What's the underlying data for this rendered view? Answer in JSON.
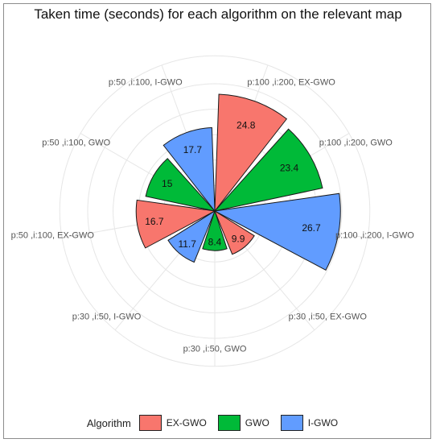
{
  "title": "Taken time (seconds) for each algorithm on the relevant map",
  "legend": {
    "title": "Algorithm",
    "items": [
      {
        "label": "EX-GWO",
        "color": "#F8766D"
      },
      {
        "label": "GWO",
        "color": "#00BA38"
      },
      {
        "label": "I-GWO",
        "color": "#619CFF"
      }
    ]
  },
  "chart_data": {
    "type": "bar",
    "polar": true,
    "title": "Taken time (seconds) for each algorithm on the relevant map",
    "categories": [
      "p:100 ,i:200, EX-GWO",
      "p:100 ,i:200, GWO",
      "p:100 ,i:200, I-GWO",
      "p:30 ,i:50, EX-GWO",
      "p:30 ,i:50, GWO",
      "p:30 ,i:50, I-GWO",
      "p:50 ,i:100, EX-GWO",
      "p:50 ,i:100, GWO",
      "p:50 ,i:100, I-GWO"
    ],
    "values": [
      24.8,
      23.4,
      26.7,
      9.9,
      8.4,
      11.7,
      16.7,
      15,
      17.7
    ],
    "algorithm": [
      "EX-GWO",
      "GWO",
      "I-GWO",
      "EX-GWO",
      "GWO",
      "I-GWO",
      "EX-GWO",
      "GWO",
      "I-GWO"
    ],
    "colors": {
      "EX-GWO": "#F8766D",
      "GWO": "#00BA38",
      "I-GWO": "#619CFF"
    },
    "rmax": 27,
    "grid": true,
    "legend_position": "bottom"
  }
}
